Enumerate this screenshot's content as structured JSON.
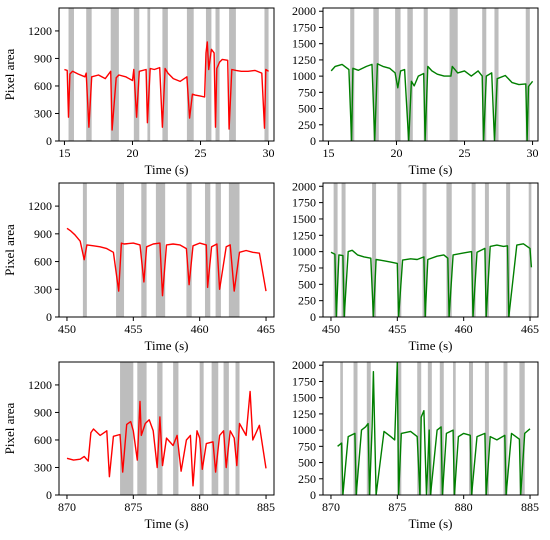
{
  "figure": {
    "colors": {
      "red_series": "#ff0000",
      "green_series": "#007f00",
      "shade": "#bdbdbd",
      "axis": "#000000"
    }
  },
  "chart_data": [
    {
      "type": "line",
      "panel": "row1-left",
      "xlabel": "Time (s)",
      "ylabel": "Pixel area",
      "xlim": [
        14.6,
        30.4
      ],
      "ylim": [
        0,
        1450
      ],
      "xticks": [
        15,
        20,
        25,
        30
      ],
      "yticks": [
        0,
        300,
        600,
        900,
        1200
      ],
      "color": "#ff0000",
      "shaded_intervals": [
        [
          15.3,
          15.7
        ],
        [
          16.6,
          17.0
        ],
        [
          18.4,
          19.0
        ],
        [
          20.1,
          20.5
        ],
        [
          21.1,
          21.3
        ],
        [
          22.2,
          22.6
        ],
        [
          24.0,
          24.5
        ],
        [
          25.4,
          25.8
        ],
        [
          26.1,
          26.4
        ],
        [
          27.1,
          27.6
        ],
        [
          29.7,
          30.0
        ]
      ],
      "x": [
        15.0,
        15.2,
        15.3,
        15.4,
        15.6,
        16.0,
        16.5,
        16.6,
        16.8,
        17.0,
        17.5,
        18.0,
        18.4,
        18.5,
        18.8,
        19.0,
        19.5,
        20.0,
        20.1,
        20.3,
        20.5,
        21.0,
        21.1,
        21.3,
        21.6,
        22.0,
        22.2,
        22.4,
        22.6,
        23.0,
        23.5,
        24.0,
        24.2,
        24.4,
        24.6,
        25.0,
        25.3,
        25.4,
        25.5,
        25.6,
        25.8,
        26.0,
        26.1,
        26.2,
        26.4,
        26.6,
        27.0,
        27.1,
        27.3,
        27.6,
        28.0,
        28.5,
        29.0,
        29.5,
        29.7,
        29.8,
        30.0
      ],
      "y": [
        780,
        770,
        260,
        730,
        760,
        730,
        700,
        740,
        150,
        700,
        720,
        680,
        760,
        120,
        690,
        720,
        700,
        660,
        780,
        260,
        760,
        780,
        200,
        790,
        780,
        800,
        150,
        790,
        740,
        680,
        650,
        700,
        250,
        510,
        500,
        490,
        480,
        960,
        1080,
        780,
        1000,
        960,
        150,
        790,
        860,
        890,
        880,
        130,
        780,
        770,
        760,
        760,
        770,
        740,
        140,
        780,
        760
      ]
    },
    {
      "type": "line",
      "panel": "row1-right",
      "xlabel": "Time (s)",
      "ylabel": "",
      "xlim": [
        14.6,
        30.4
      ],
      "ylim": [
        0,
        2050
      ],
      "xticks": [
        15,
        20,
        25,
        30
      ],
      "yticks": [
        0,
        250,
        500,
        750,
        1000,
        1250,
        1500,
        1750,
        2000
      ],
      "color": "#007f00",
      "shaded_intervals": [
        [
          16.6,
          16.9
        ],
        [
          18.3,
          18.7
        ],
        [
          19.9,
          20.3
        ],
        [
          20.8,
          21.2
        ],
        [
          22.0,
          22.3
        ],
        [
          23.9,
          24.5
        ],
        [
          26.3,
          26.6
        ],
        [
          27.2,
          27.5
        ],
        [
          29.5,
          29.8
        ]
      ],
      "x": [
        15.2,
        15.5,
        16.0,
        16.5,
        16.7,
        16.8,
        17.2,
        17.8,
        18.2,
        18.4,
        18.6,
        19.0,
        19.5,
        19.9,
        20.1,
        20.3,
        20.6,
        20.9,
        21.1,
        21.3,
        21.6,
        22.0,
        22.1,
        22.3,
        22.6,
        23.0,
        23.5,
        24.0,
        24.1,
        24.5,
        25.0,
        25.5,
        26.0,
        26.3,
        26.4,
        26.6,
        27.0,
        27.2,
        27.4,
        28.0,
        28.5,
        29.0,
        29.5,
        29.6,
        29.7,
        30.0
      ],
      "y": [
        1080,
        1150,
        1180,
        1100,
        0,
        1120,
        1090,
        1150,
        1180,
        0,
        1190,
        1150,
        1120,
        1050,
        820,
        1080,
        1100,
        0,
        920,
        850,
        1000,
        1040,
        0,
        1150,
        1080,
        1030,
        1000,
        1000,
        1150,
        1050,
        1080,
        1000,
        1080,
        1000,
        0,
        1000,
        1050,
        0,
        960,
        1010,
        900,
        870,
        880,
        0,
        840,
        920
      ]
    },
    {
      "type": "line",
      "panel": "row2-left",
      "xlabel": "Time (s)",
      "ylabel": "Pixel area",
      "xlim": [
        449.4,
        465.6
      ],
      "ylim": [
        0,
        1450
      ],
      "xticks": [
        450,
        455,
        460,
        465
      ],
      "yticks": [
        0,
        300,
        600,
        900,
        1200
      ],
      "color": "#ff0000",
      "shaded_intervals": [
        [
          451.2,
          451.5
        ],
        [
          453.7,
          454.3
        ],
        [
          455.6,
          456.0
        ],
        [
          456.7,
          457.4
        ],
        [
          459.0,
          459.4
        ],
        [
          460.4,
          460.8
        ],
        [
          461.2,
          461.6
        ],
        [
          462.2,
          463.0
        ]
      ],
      "x": [
        450.0,
        450.3,
        450.6,
        451.0,
        451.3,
        451.5,
        452.0,
        452.5,
        453.0,
        453.5,
        453.9,
        454.1,
        454.3,
        455.0,
        455.5,
        455.8,
        456.0,
        456.5,
        457.0,
        457.2,
        457.5,
        458.0,
        458.5,
        459.0,
        459.2,
        459.5,
        460.0,
        460.5,
        460.6,
        460.9,
        461.3,
        461.5,
        462.0,
        462.3,
        462.6,
        463.0,
        463.5,
        464.0,
        464.5,
        465.0
      ],
      "y": [
        960,
        930,
        890,
        820,
        620,
        780,
        770,
        760,
        740,
        700,
        280,
        800,
        790,
        800,
        780,
        380,
        760,
        790,
        800,
        230,
        780,
        790,
        780,
        740,
        350,
        770,
        800,
        780,
        320,
        760,
        790,
        300,
        760,
        780,
        280,
        700,
        720,
        700,
        690,
        280
      ]
    },
    {
      "type": "line",
      "panel": "row2-right",
      "xlabel": "Time (s)",
      "ylabel": "",
      "xlim": [
        449.4,
        465.6
      ],
      "ylim": [
        0,
        2050
      ],
      "xticks": [
        450,
        455,
        460,
        465
      ],
      "yticks": [
        0,
        250,
        500,
        750,
        1000,
        1250,
        1500,
        1750,
        2000
      ],
      "color": "#007f00",
      "shaded_intervals": [
        [
          450.2,
          450.5
        ],
        [
          450.8,
          451.1
        ],
        [
          453.1,
          453.4
        ],
        [
          455.0,
          455.3
        ],
        [
          456.9,
          457.2
        ],
        [
          458.7,
          459.1
        ],
        [
          460.6,
          460.9
        ],
        [
          461.6,
          461.9
        ],
        [
          463.2,
          463.5
        ],
        [
          464.9,
          465.1
        ]
      ],
      "x": [
        450.0,
        450.3,
        450.4,
        450.6,
        450.9,
        451.0,
        451.3,
        451.6,
        452.0,
        452.5,
        453.0,
        453.2,
        453.4,
        454.0,
        454.5,
        455.0,
        455.1,
        455.4,
        456.0,
        456.5,
        457.0,
        457.1,
        457.3,
        458.0,
        458.5,
        458.8,
        458.9,
        459.2,
        460.0,
        460.6,
        460.7,
        461.0,
        461.6,
        461.7,
        462.0,
        462.5,
        463.0,
        463.3,
        463.4,
        464.0,
        464.5,
        465.0,
        465.1
      ],
      "y": [
        990,
        960,
        0,
        950,
        940,
        0,
        1000,
        1020,
        950,
        920,
        900,
        0,
        880,
        860,
        840,
        820,
        0,
        870,
        890,
        880,
        920,
        0,
        880,
        930,
        950,
        900,
        0,
        950,
        980,
        1000,
        0,
        990,
        1050,
        0,
        1080,
        1100,
        1080,
        1090,
        0,
        1100,
        1120,
        1050,
        760
      ]
    },
    {
      "type": "line",
      "panel": "row3-left",
      "xlabel": "Time (s)",
      "ylabel": "Pixel area",
      "xlim": [
        869.4,
        885.6
      ],
      "ylim": [
        0,
        1450
      ],
      "xticks": [
        870,
        875,
        880,
        885
      ],
      "yticks": [
        0,
        300,
        600,
        900,
        1200
      ],
      "color": "#ff0000",
      "shaded_intervals": [
        [
          874.0,
          875.0
        ],
        [
          875.3,
          876.0
        ],
        [
          876.8,
          877.2
        ],
        [
          878.0,
          878.4
        ],
        [
          880.0,
          880.3
        ],
        [
          880.9,
          881.4
        ],
        [
          881.8,
          882.2
        ],
        [
          882.7,
          883.0
        ]
      ],
      "x": [
        870.0,
        870.5,
        871.0,
        871.3,
        871.6,
        871.8,
        872.0,
        872.5,
        873.0,
        873.2,
        873.5,
        874.0,
        874.2,
        874.5,
        874.8,
        875.0,
        875.3,
        875.5,
        875.6,
        875.9,
        876.2,
        876.5,
        876.8,
        877.0,
        877.2,
        877.5,
        878.0,
        878.3,
        878.6,
        879.0,
        879.3,
        879.5,
        879.8,
        880.0,
        880.2,
        880.5,
        881.0,
        881.2,
        881.5,
        881.8,
        882.0,
        882.3,
        882.6,
        882.8,
        883.0,
        883.5,
        883.8,
        884.0,
        884.5,
        885.0
      ],
      "y": [
        400,
        380,
        390,
        420,
        370,
        680,
        720,
        650,
        700,
        200,
        640,
        660,
        250,
        770,
        800,
        700,
        380,
        1020,
        650,
        780,
        820,
        700,
        300,
        850,
        320,
        620,
        540,
        650,
        260,
        600,
        650,
        100,
        700,
        620,
        280,
        560,
        580,
        250,
        650,
        700,
        300,
        700,
        620,
        320,
        780,
        650,
        1130,
        600,
        760,
        290
      ]
    },
    {
      "type": "line",
      "panel": "row3-right",
      "xlabel": "Time (s)",
      "ylabel": "",
      "xlim": [
        869.4,
        885.6
      ],
      "ylim": [
        0,
        2050
      ],
      "xticks": [
        870,
        875,
        880,
        885
      ],
      "yticks": [
        0,
        250,
        500,
        750,
        1000,
        1250,
        1500,
        1750,
        2000
      ],
      "color": "#007f00",
      "shaded_intervals": [
        [
          870.7,
          870.9
        ],
        [
          871.7,
          872.0
        ],
        [
          872.7,
          873.0
        ],
        [
          875.0,
          875.3
        ],
        [
          876.5,
          876.8
        ],
        [
          877.3,
          877.6
        ],
        [
          878.2,
          878.5
        ],
        [
          879.2,
          879.4
        ],
        [
          880.4,
          880.7
        ],
        [
          881.6,
          881.9
        ],
        [
          883.0,
          883.3
        ],
        [
          884.2,
          884.6
        ]
      ],
      "x": [
        870.5,
        870.8,
        870.9,
        871.3,
        871.8,
        871.9,
        872.3,
        872.6,
        872.8,
        872.9,
        873.1,
        873.2,
        873.4,
        874.0,
        874.5,
        874.8,
        875.0,
        875.1,
        875.3,
        876.0,
        876.5,
        876.7,
        876.8,
        877.0,
        877.2,
        877.4,
        877.5,
        878.0,
        878.3,
        878.4,
        878.7,
        879.2,
        879.3,
        879.6,
        880.0,
        880.5,
        880.6,
        881.0,
        881.6,
        881.7,
        882.0,
        882.5,
        883.1,
        883.2,
        883.6,
        884.2,
        884.3,
        884.6,
        885.0
      ],
      "y": [
        750,
        800,
        0,
        900,
        950,
        0,
        1000,
        1050,
        1100,
        0,
        1050,
        1900,
        0,
        980,
        900,
        850,
        2050,
        0,
        950,
        980,
        900,
        0,
        1200,
        1300,
        0,
        1000,
        0,
        1000,
        1050,
        0,
        950,
        1000,
        0,
        900,
        950,
        920,
        0,
        900,
        950,
        0,
        900,
        850,
        920,
        0,
        950,
        860,
        0,
        950,
        1020
      ]
    }
  ]
}
